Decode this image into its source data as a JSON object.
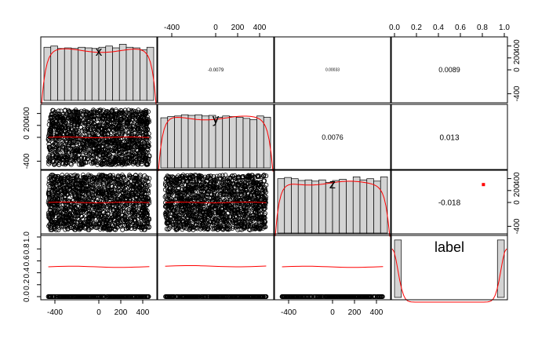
{
  "chart_data": {
    "type": "scatter",
    "layout": "pairs-panel-matrix",
    "variables": [
      "x",
      "y",
      "z",
      "label"
    ],
    "ranges": {
      "x": [
        -500,
        500
      ],
      "y": [
        -500,
        500
      ],
      "z": [
        -500,
        500
      ],
      "label": [
        0,
        1
      ]
    },
    "ticks": {
      "x": [
        "-400",
        "0",
        "200",
        "400"
      ],
      "y": [
        "-400",
        "0",
        "200",
        "400"
      ],
      "z": [
        "-400",
        "0",
        "200",
        "400"
      ],
      "label": [
        "0.0",
        "0.2",
        "0.4",
        "0.6",
        "0.8",
        "1.0"
      ]
    },
    "tick_values": {
      "x": [
        -400,
        0,
        200,
        400
      ],
      "y": [
        -400,
        0,
        200,
        400
      ],
      "z": [
        -400,
        0,
        200,
        400
      ],
      "label": [
        0.0,
        0.2,
        0.4,
        0.6,
        0.8,
        1.0
      ]
    },
    "correlations": [
      {
        "row": "x",
        "col": "y",
        "text": "-0.0079",
        "size": 6
      },
      {
        "row": "x",
        "col": "z",
        "text": "0.00033",
        "size": 5
      },
      {
        "row": "x",
        "col": "label",
        "text": "0.0089",
        "size": 9
      },
      {
        "row": "y",
        "col": "z",
        "text": "0.0076",
        "size": 9
      },
      {
        "row": "y",
        "col": "label",
        "text": "0.013",
        "size": 10
      },
      {
        "row": "z",
        "col": "label",
        "text": "-0.018",
        "size": 10
      }
    ],
    "histograms": {
      "x": [
        0.88,
        0.9,
        0.86,
        0.87,
        0.86,
        0.88,
        0.87,
        0.86,
        0.88,
        0.9,
        0.87,
        0.93,
        0.88,
        0.87,
        0.84,
        0.88
      ],
      "y": [
        0.83,
        0.85,
        0.86,
        0.88,
        0.87,
        0.88,
        0.86,
        0.87,
        0.84,
        0.86,
        0.85,
        0.84,
        0.82,
        0.8,
        0.86,
        0.84
      ],
      "z": [
        0.9,
        0.92,
        0.9,
        0.87,
        0.88,
        0.86,
        0.88,
        0.84,
        0.87,
        0.89,
        0.86,
        0.93,
        0.88,
        0.9,
        0.86,
        0.93
      ],
      "label": [
        0.95,
        0,
        0,
        0,
        0,
        0,
        0,
        0,
        0,
        0,
        0,
        0,
        0,
        0,
        0,
        0.95
      ]
    },
    "label_values": [
      0,
      1
    ],
    "scatter_smoothers": [
      {
        "row": "y",
        "col": "x",
        "y_level": 0.0
      },
      {
        "row": "z",
        "col": "x",
        "y_level": 0.0
      },
      {
        "row": "z",
        "col": "y",
        "y_level": 0.0
      },
      {
        "row": "label",
        "col": "x",
        "y_level": 0.5
      },
      {
        "row": "label",
        "col": "y",
        "y_level": 0.51
      },
      {
        "row": "label",
        "col": "z",
        "y_level": 0.5
      }
    ],
    "highlight_point": {
      "row": "z",
      "col": "label",
      "x": 0.81,
      "y": 300,
      "color": "#ff0000"
    },
    "colors": {
      "hist_fill": "#d3d3d3",
      "smoother": "#ff0000",
      "points": "#000000",
      "box": "#000000"
    },
    "grid": false,
    "legend": "none"
  }
}
